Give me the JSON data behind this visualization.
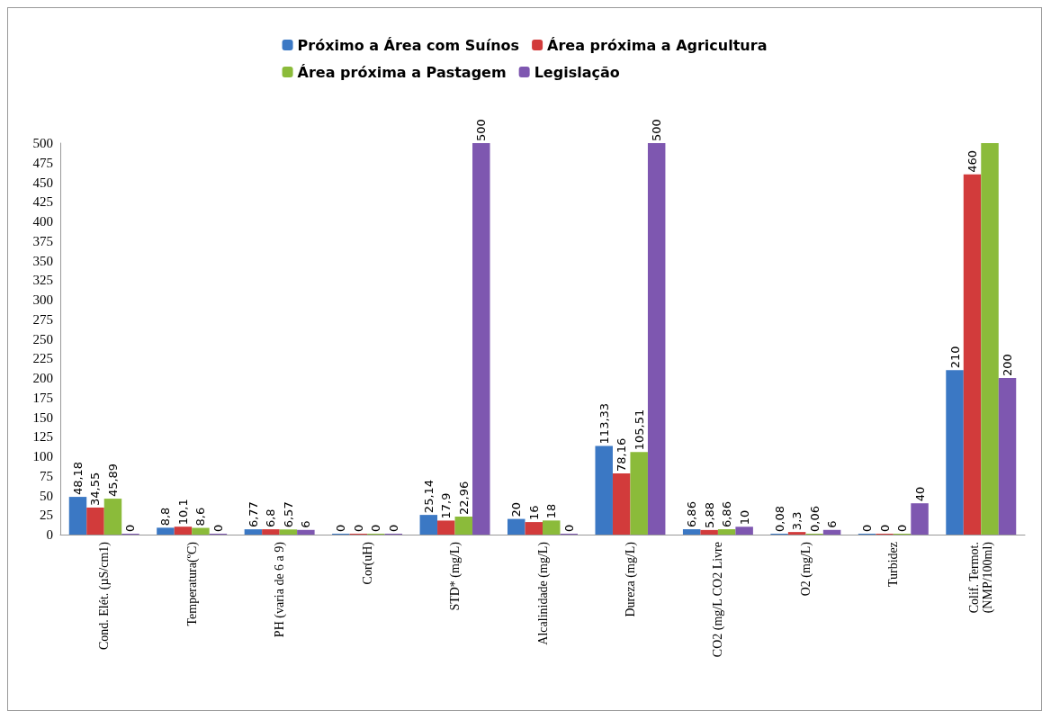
{
  "chart_data": {
    "type": "bar",
    "categories": [
      "Cond. Elét. (µS/cm1)",
      "Temperatura(ºC)",
      "PH (varia de 6 a 9)",
      "Cor(uH)",
      "STD* (mg/L)",
      "Alcalinidade (mg/L)",
      "Dureza (mg/L)",
      "CO2 (mg/L CO2 Livre",
      "O2 (mg/L)",
      "Turbidez",
      "Colif. Termot.\n(NMP/100ml)"
    ],
    "series": [
      {
        "name": "Próximo a Área com Suínos",
        "color": "#3b78c4",
        "values": [
          48.18,
          8.8,
          6.77,
          0,
          25.14,
          20,
          113.33,
          6.86,
          0.08,
          0,
          210
        ],
        "value_labels": [
          "48,18",
          "8,8",
          "6,77",
          "0",
          "25,14",
          "20",
          "113,33",
          "6,86",
          "0,08",
          "0",
          "210"
        ]
      },
      {
        "name": "Área próxima a Agricultura",
        "color": "#d23b3b",
        "values": [
          34.55,
          10.1,
          6.8,
          0,
          17.9,
          16,
          78.16,
          5.88,
          3.3,
          0,
          460
        ],
        "value_labels": [
          "34,55",
          "10,1",
          "6,8",
          "0",
          "17,9",
          "16",
          "78,16",
          "5,88",
          "3,3",
          "0",
          "460"
        ]
      },
      {
        "name": "Área próxima a Pastagem",
        "color": "#8bbb3a",
        "values": [
          45.89,
          8.6,
          6.57,
          0,
          22.96,
          18,
          105.51,
          6.86,
          0.06,
          0,
          500
        ],
        "value_labels": [
          "45,89",
          "8,6",
          "6,57",
          "0",
          "22,96",
          "18",
          "105,51",
          "6,86",
          "0,06",
          "0",
          null
        ]
      },
      {
        "name": "Legislação",
        "color": "#7e57b0",
        "values": [
          0,
          0,
          6,
          0,
          500,
          0,
          500,
          10,
          6,
          40,
          200
        ],
        "value_labels": [
          "0",
          "0",
          "6",
          "0",
          "500",
          "0",
          "500",
          "10",
          "6",
          "40",
          "200"
        ]
      }
    ],
    "ylim": [
      0,
      500
    ],
    "yticks": [
      0,
      25,
      50,
      75,
      100,
      125,
      150,
      175,
      200,
      225,
      250,
      275,
      300,
      325,
      350,
      375,
      400,
      425,
      450,
      475,
      500
    ],
    "grid": false,
    "legend": "top"
  }
}
